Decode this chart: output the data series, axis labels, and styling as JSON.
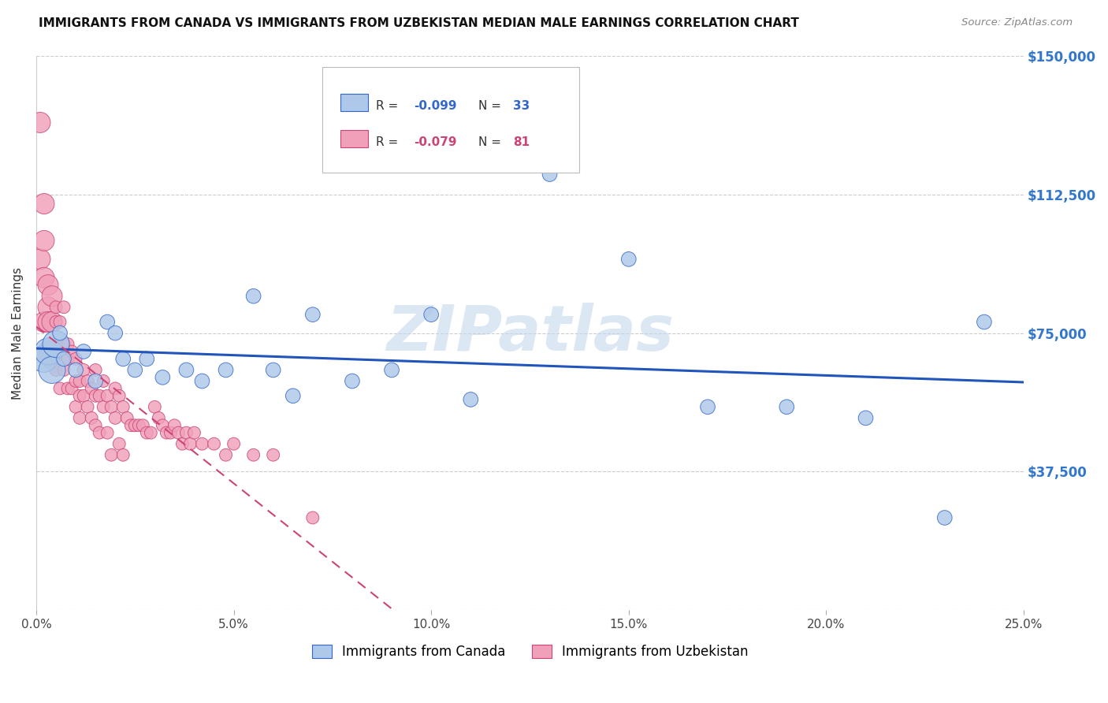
{
  "title": "IMMIGRANTS FROM CANADA VS IMMIGRANTS FROM UZBEKISTAN MEDIAN MALE EARNINGS CORRELATION CHART",
  "source": "Source: ZipAtlas.com",
  "ylabel": "Median Male Earnings",
  "yticks": [
    0,
    37500,
    75000,
    112500,
    150000
  ],
  "ytick_labels": [
    "",
    "$37,500",
    "$75,000",
    "$112,500",
    "$150,000"
  ],
  "xlim": [
    0.0,
    0.25
  ],
  "ylim": [
    0,
    150000
  ],
  "legend_label1": "Immigrants from Canada",
  "legend_label2": "Immigrants from Uzbekistan",
  "color_canada": "#adc8e8",
  "color_uzbekistan": "#f0a0b8",
  "color_canada_edge": "#3366cc",
  "color_uzbekistan_edge": "#cc4477",
  "color_canada_line": "#2255bb",
  "color_uzbekistan_line": "#cc4477",
  "color_ytick_labels": "#3377cc",
  "background_color": "#ffffff",
  "grid_color": "#cccccc",
  "canada_x": [
    0.002,
    0.003,
    0.004,
    0.005,
    0.006,
    0.007,
    0.01,
    0.012,
    0.015,
    0.018,
    0.02,
    0.022,
    0.025,
    0.028,
    0.032,
    0.038,
    0.042,
    0.048,
    0.055,
    0.06,
    0.065,
    0.07,
    0.08,
    0.09,
    0.1,
    0.11,
    0.13,
    0.15,
    0.17,
    0.19,
    0.21,
    0.23,
    0.24
  ],
  "canada_y": [
    68000,
    70000,
    65000,
    72000,
    75000,
    68000,
    65000,
    70000,
    62000,
    78000,
    75000,
    68000,
    65000,
    68000,
    63000,
    65000,
    62000,
    65000,
    85000,
    65000,
    58000,
    80000,
    62000,
    65000,
    80000,
    57000,
    118000,
    95000,
    55000,
    55000,
    52000,
    25000,
    78000
  ],
  "uzbekistan_x": [
    0.001,
    0.001,
    0.002,
    0.002,
    0.002,
    0.002,
    0.003,
    0.003,
    0.003,
    0.003,
    0.004,
    0.004,
    0.004,
    0.005,
    0.005,
    0.005,
    0.006,
    0.006,
    0.006,
    0.007,
    0.007,
    0.007,
    0.008,
    0.008,
    0.008,
    0.009,
    0.009,
    0.01,
    0.01,
    0.01,
    0.011,
    0.011,
    0.011,
    0.012,
    0.012,
    0.013,
    0.013,
    0.014,
    0.014,
    0.015,
    0.015,
    0.015,
    0.016,
    0.016,
    0.017,
    0.017,
    0.018,
    0.018,
    0.019,
    0.019,
    0.02,
    0.02,
    0.021,
    0.021,
    0.022,
    0.022,
    0.023,
    0.024,
    0.025,
    0.026,
    0.027,
    0.028,
    0.029,
    0.03,
    0.031,
    0.032,
    0.033,
    0.034,
    0.035,
    0.036,
    0.037,
    0.038,
    0.039,
    0.04,
    0.042,
    0.045,
    0.048,
    0.05,
    0.055,
    0.06,
    0.07
  ],
  "uzbekistan_y": [
    132000,
    95000,
    110000,
    100000,
    90000,
    78000,
    88000,
    82000,
    78000,
    70000,
    85000,
    78000,
    68000,
    82000,
    78000,
    65000,
    78000,
    70000,
    60000,
    82000,
    72000,
    65000,
    72000,
    68000,
    60000,
    70000,
    60000,
    68000,
    62000,
    55000,
    62000,
    58000,
    52000,
    65000,
    58000,
    62000,
    55000,
    60000,
    52000,
    65000,
    58000,
    50000,
    58000,
    48000,
    62000,
    55000,
    58000,
    48000,
    55000,
    42000,
    60000,
    52000,
    58000,
    45000,
    55000,
    42000,
    52000,
    50000,
    50000,
    50000,
    50000,
    48000,
    48000,
    55000,
    52000,
    50000,
    48000,
    48000,
    50000,
    48000,
    45000,
    48000,
    45000,
    48000,
    45000,
    45000,
    42000,
    45000,
    42000,
    42000,
    25000
  ],
  "canada_marker_size": 180,
  "uzbekistan_marker_size": 130,
  "canada_large_size": 600,
  "uzbekistan_large_size": 350,
  "watermark_text": "ZIPatlas",
  "watermark_color": "#c5d8ee",
  "watermark_alpha": 0.6
}
